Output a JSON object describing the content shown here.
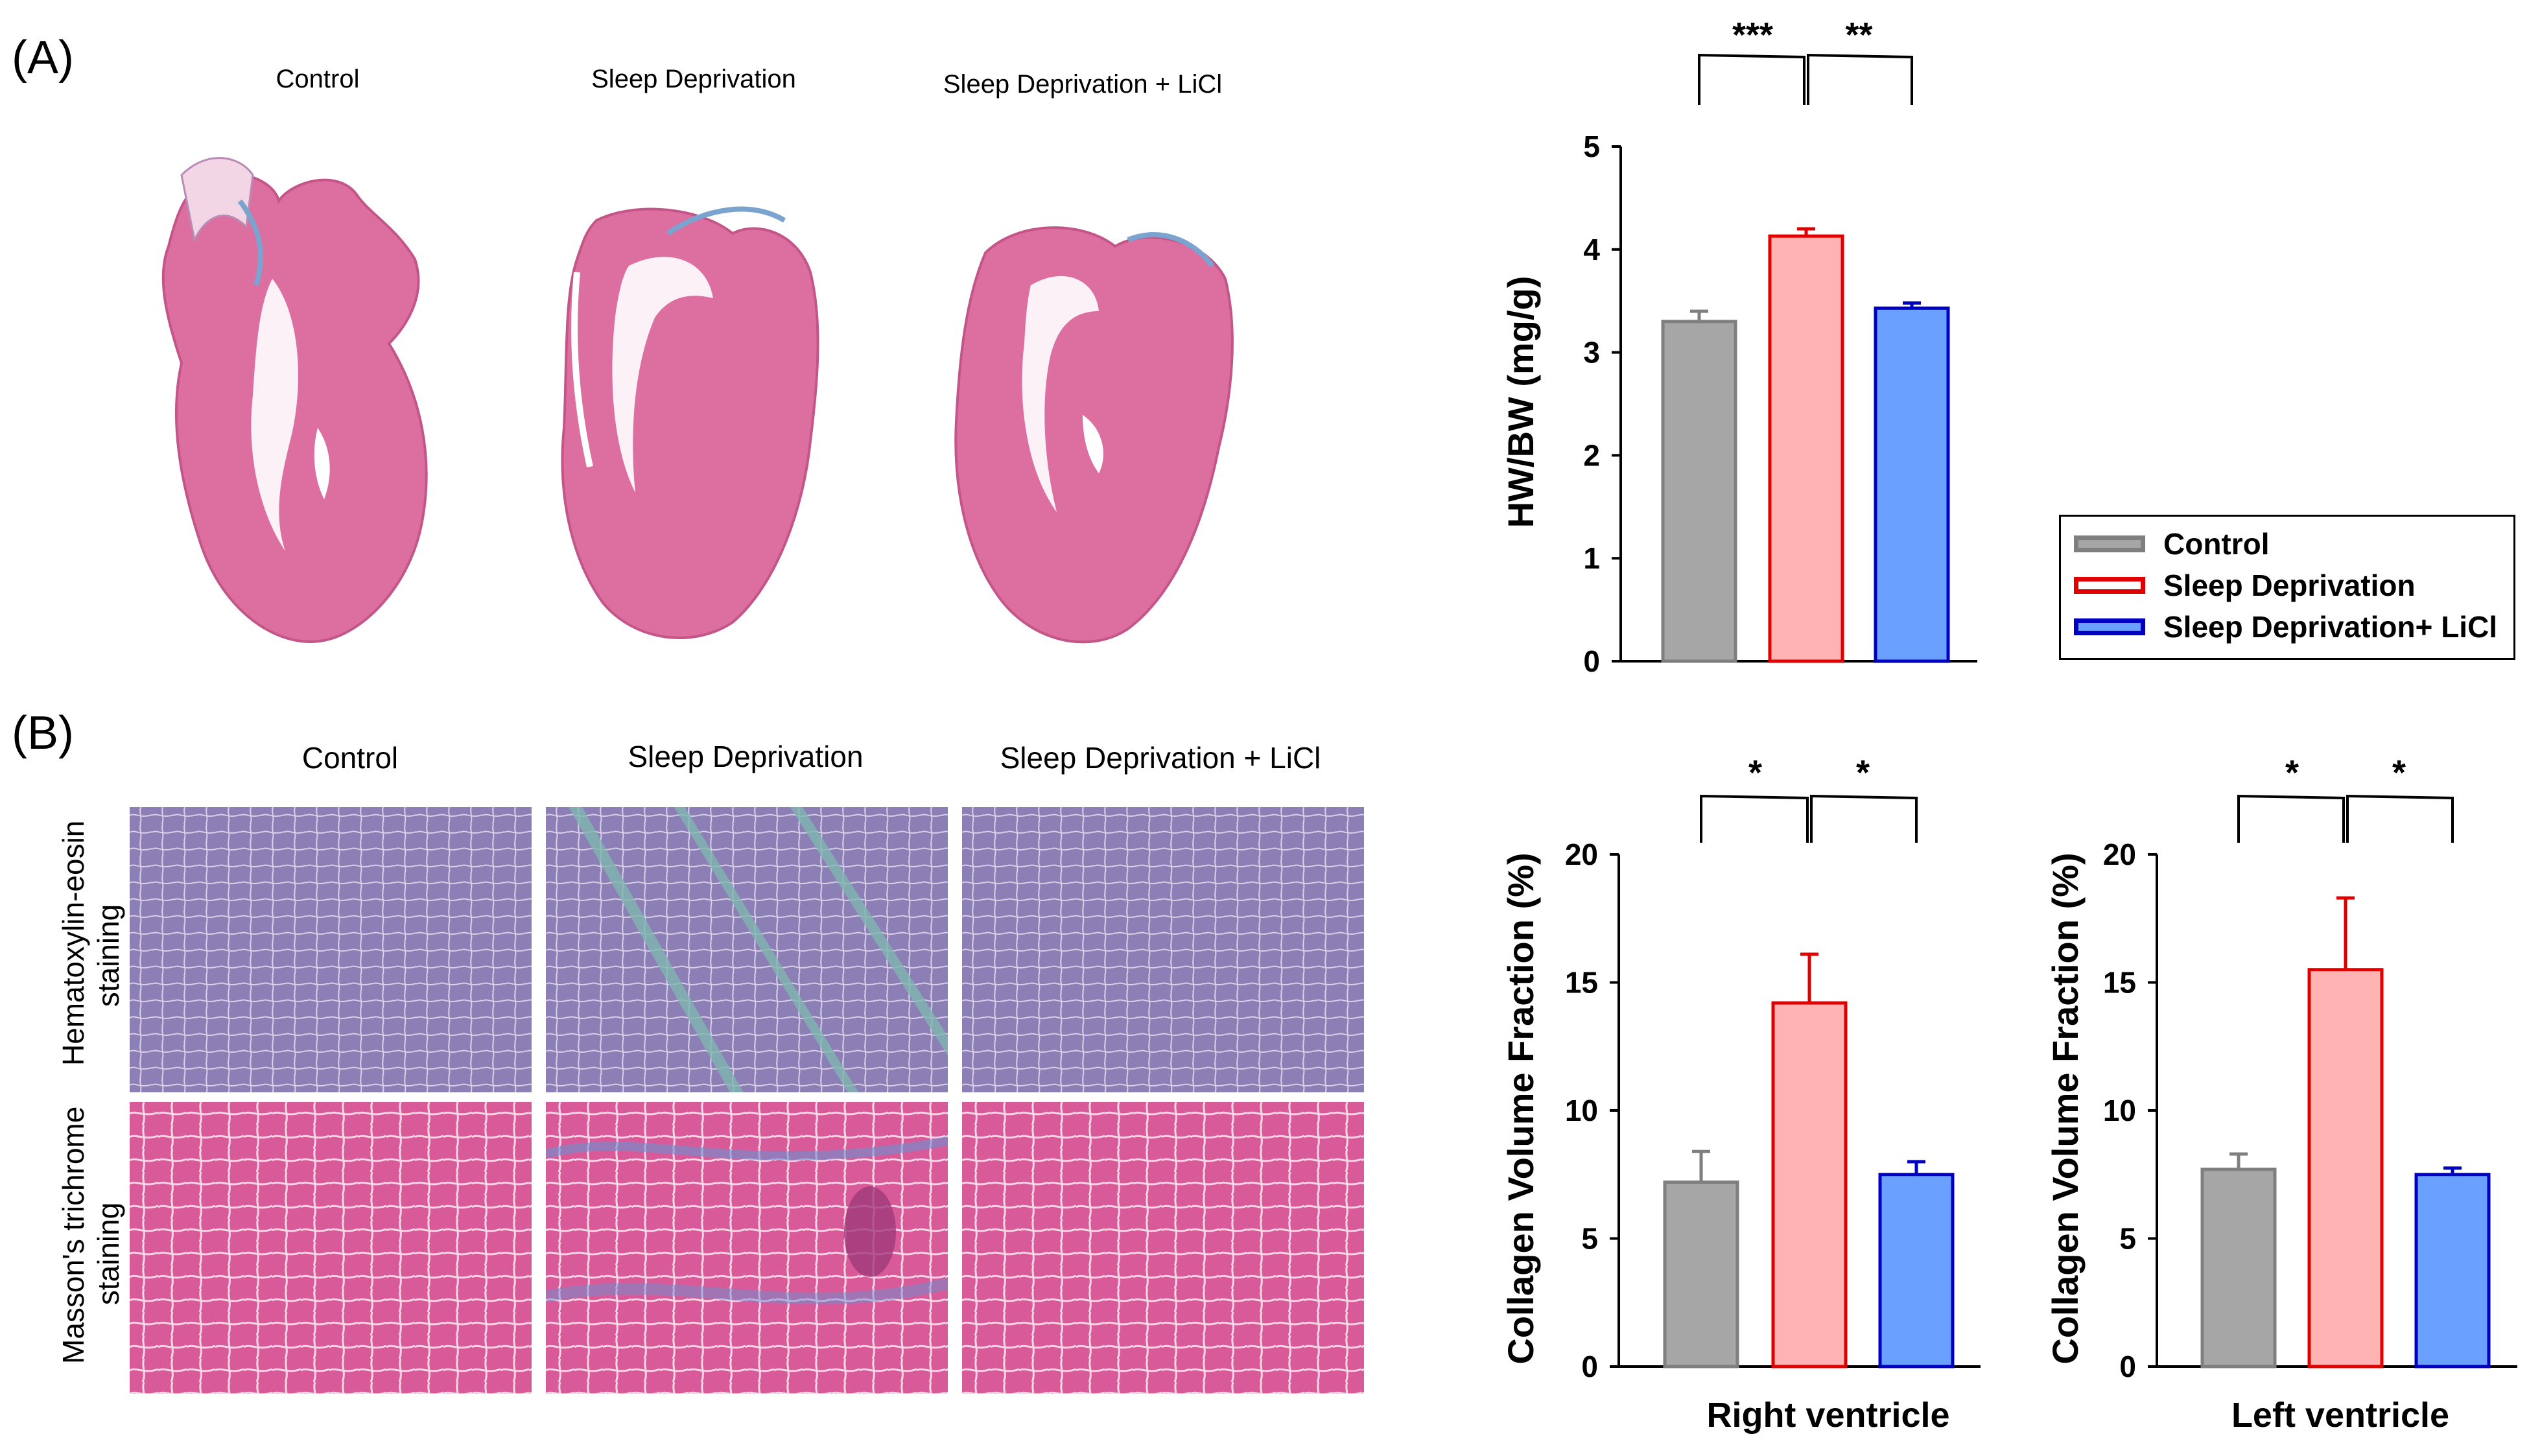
{
  "panel_a": {
    "label": "(A)",
    "columns": [
      "Control",
      "Sleep Deprivation",
      "Sleep Deprivation + LiCl"
    ]
  },
  "panel_b": {
    "label": "(B)",
    "columns": [
      "Control",
      "Sleep Deprivation",
      "Sleep Deprivation + LiCl"
    ],
    "rows": [
      {
        "line1": "Hematoxylin-eosin",
        "line2": "staining"
      },
      {
        "line1": "Masson's trichrome",
        "line2": "staining"
      }
    ]
  },
  "colors": {
    "control_fill": "#a6a6a6",
    "control_edge": "#7f7f7f",
    "sd_fill": "#ffb3b3",
    "sd_edge": "#e00000",
    "licl_fill": "#6aa0ff",
    "licl_edge": "#0000c0"
  },
  "legend": {
    "items": [
      {
        "label": "Control",
        "fill": "#a6a6a6",
        "edge": "#7f7f7f"
      },
      {
        "label": "Sleep Deprivation",
        "fill": "#ffffff",
        "edge": "#e00000"
      },
      {
        "label": "Sleep Deprivation+ LiCl",
        "fill": "#6aa0ff",
        "edge": "#0000c0"
      }
    ]
  },
  "chart_data": [
    {
      "type": "bar",
      "title": "",
      "ylabel": "HW/BW (mg/g)",
      "xlabel": "",
      "ylim": [
        0,
        5
      ],
      "yticks": [
        0,
        1,
        2,
        3,
        4,
        5
      ],
      "categories": [
        "Control",
        "Sleep Deprivation",
        "Sleep Deprivation+ LiCl"
      ],
      "values": [
        3.3,
        4.13,
        3.43
      ],
      "errors": [
        0.1,
        0.07,
        0.05
      ],
      "significance": [
        "***",
        "**"
      ]
    },
    {
      "type": "bar",
      "title": "",
      "ylabel": "Collagen Volume Fraction (%)",
      "xlabel": "Right ventricle",
      "ylim": [
        0,
        20
      ],
      "yticks": [
        0,
        5,
        10,
        15,
        20
      ],
      "categories": [
        "Control",
        "Sleep Deprivation",
        "Sleep Deprivation+ LiCl"
      ],
      "values": [
        7.2,
        14.2,
        7.5
      ],
      "errors": [
        1.2,
        1.9,
        0.5
      ],
      "significance": [
        "*",
        "*"
      ]
    },
    {
      "type": "bar",
      "title": "",
      "ylabel": "Collagen Volume Fraction (%)",
      "xlabel": "Left ventricle",
      "ylim": [
        0,
        20
      ],
      "yticks": [
        0,
        5,
        10,
        15,
        20
      ],
      "categories": [
        "Control",
        "Sleep Deprivation",
        "Sleep Deprivation+ LiCl"
      ],
      "values": [
        7.7,
        15.5,
        7.5
      ],
      "errors": [
        0.6,
        2.8,
        0.25
      ],
      "significance": [
        "*",
        "*"
      ]
    }
  ]
}
